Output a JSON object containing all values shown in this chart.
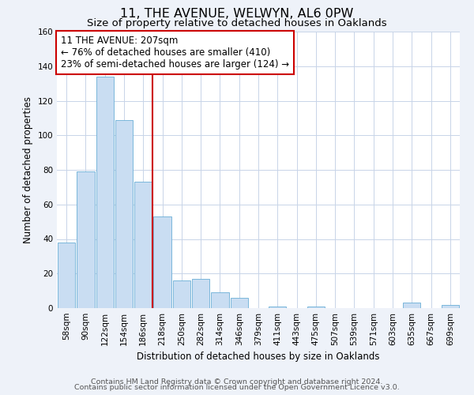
{
  "title": "11, THE AVENUE, WELWYN, AL6 0PW",
  "subtitle": "Size of property relative to detached houses in Oaklands",
  "xlabel": "Distribution of detached houses by size in Oaklands",
  "ylabel": "Number of detached properties",
  "bar_labels": [
    "58sqm",
    "90sqm",
    "122sqm",
    "154sqm",
    "186sqm",
    "218sqm",
    "250sqm",
    "282sqm",
    "314sqm",
    "346sqm",
    "379sqm",
    "411sqm",
    "443sqm",
    "475sqm",
    "507sqm",
    "539sqm",
    "571sqm",
    "603sqm",
    "635sqm",
    "667sqm",
    "699sqm"
  ],
  "bar_values": [
    38,
    79,
    134,
    109,
    73,
    53,
    16,
    17,
    9,
    6,
    0,
    1,
    0,
    1,
    0,
    0,
    0,
    0,
    3,
    0,
    2
  ],
  "bar_color": "#c9ddf2",
  "bar_edgecolor": "#6aaed6",
  "ylim": [
    0,
    160
  ],
  "yticks": [
    0,
    20,
    40,
    60,
    80,
    100,
    120,
    140,
    160
  ],
  "vline_x_idx": 4.5,
  "vline_color": "#cc0000",
  "annotation_text": "11 THE AVENUE: 207sqm\n← 76% of detached houses are smaller (410)\n23% of semi-detached houses are larger (124) →",
  "annotation_box_color": "#ffffff",
  "annotation_box_edgecolor": "#cc0000",
  "footer_line1": "Contains HM Land Registry data © Crown copyright and database right 2024.",
  "footer_line2": "Contains public sector information licensed under the Open Government Licence v3.0.",
  "background_color": "#eef2f9",
  "plot_bg_color": "#ffffff",
  "grid_color": "#c8d4e8",
  "title_fontsize": 11.5,
  "subtitle_fontsize": 9.5,
  "axis_label_fontsize": 8.5,
  "tick_fontsize": 7.5,
  "annotation_fontsize": 8.5,
  "footer_fontsize": 6.8
}
